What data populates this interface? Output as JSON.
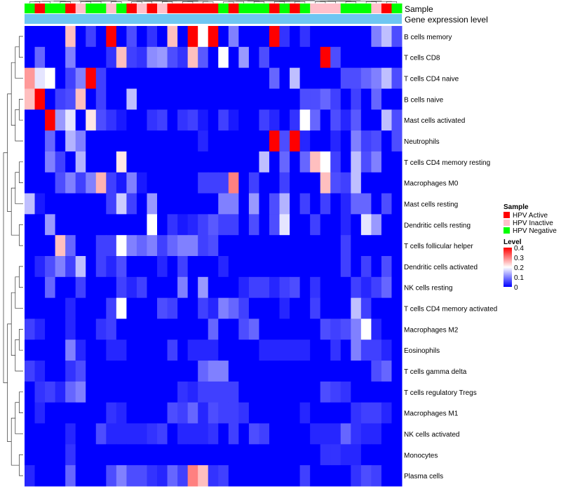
{
  "chart_data": {
    "type": "heatmap",
    "title": "",
    "annotation_rows": [
      {
        "name": "Sample",
        "values": [
          "HPV Negative",
          "HPV Active",
          "HPV Negative",
          "HPV Negative",
          "HPV Active",
          "HPV Inactive",
          "HPV Negative",
          "HPV Negative",
          "HPV Inactive",
          "HPV Negative",
          "HPV Active",
          "HPV Inactive",
          "HPV Active",
          "HPV Inactive",
          "HPV Active",
          "HPV Active",
          "HPV Active",
          "HPV Active",
          "HPV Active",
          "HPV Negative",
          "HPV Active",
          "HPV Negative",
          "HPV Negative",
          "HPV Negative",
          "HPV Active",
          "HPV Negative",
          "HPV Active",
          "HPV Negative",
          "HPV Inactive",
          "HPV Inactive",
          "HPV Inactive",
          "HPV Negative",
          "HPV Negative",
          "HPV Negative",
          "HPV Inactive",
          "HPV Active",
          "HPV Negative"
        ]
      },
      {
        "name": "Gene expression level",
        "values": []
      }
    ],
    "rows": [
      "B cells memory",
      "T cells CD8",
      "T cells CD4 naive",
      "B cells naive",
      "Mast cells activated",
      "Neutrophils",
      "T cells CD4 memory resting",
      "Macrophages M0",
      "Mast cells resting",
      "Dendritic cells resting",
      "T cells follicular helper",
      "Dendritic cells activated",
      "NK cells resting",
      "T cells CD4 memory activated",
      "Macrophages M2",
      "Eosinophils",
      "T cells gamma delta",
      "T cells regulatory  Tregs",
      "Macrophages M1",
      "NK cells activated",
      "Monocytes",
      "Plasma cells"
    ],
    "values": [
      [
        0,
        0,
        0,
        0,
        0.25,
        0,
        0.05,
        0,
        0.4,
        0,
        0.06,
        0,
        0.04,
        0,
        0.25,
        0,
        0.4,
        0.2,
        0.4,
        0,
        0.1,
        0,
        0,
        0,
        0.4,
        0.04,
        0,
        0.04,
        0,
        0,
        0,
        0,
        0,
        0,
        0.1,
        0.15,
        0.06
      ],
      [
        0,
        0.08,
        0,
        0,
        0.1,
        0,
        0,
        0,
        0.04,
        0.25,
        0.05,
        0.04,
        0.11,
        0.12,
        0.06,
        0.04,
        0.25,
        0.07,
        0,
        0.2,
        0,
        0.12,
        0,
        0.06,
        0,
        0,
        0,
        0,
        0,
        0.4,
        0.06,
        0,
        0,
        0,
        0,
        0,
        0
      ],
      [
        0.28,
        0.18,
        0.2,
        0,
        0.05,
        0.1,
        0.4,
        0.05,
        0,
        0,
        0,
        0,
        0,
        0,
        0,
        0,
        0,
        0,
        0,
        0,
        0,
        0,
        0,
        0,
        0.08,
        0,
        0.15,
        0,
        0,
        0,
        0,
        0.06,
        0.06,
        0.08,
        0.1,
        0.15,
        0.06
      ],
      [
        0.25,
        0.4,
        0,
        0.05,
        0.06,
        0.25,
        0,
        0.05,
        0,
        0,
        0.15,
        0,
        0,
        0,
        0,
        0,
        0,
        0,
        0,
        0,
        0,
        0,
        0,
        0,
        0,
        0,
        0,
        0.06,
        0.06,
        0.08,
        0.05,
        0,
        0.05,
        0,
        0.08,
        0,
        0
      ],
      [
        0,
        0,
        0.4,
        0.12,
        0.18,
        0,
        0.22,
        0.06,
        0.04,
        0.02,
        0,
        0,
        0.04,
        0.05,
        0,
        0.04,
        0.05,
        0.02,
        0,
        0.05,
        0.02,
        0,
        0,
        0.05,
        0.03,
        0,
        0.04,
        0.2,
        0.08,
        0,
        0.06,
        0.03,
        0.07,
        0,
        0,
        0.15,
        0.06
      ],
      [
        0,
        0,
        0.08,
        0,
        0.14,
        0.1,
        0,
        0,
        0,
        0,
        0,
        0,
        0,
        0,
        0,
        0,
        0,
        0.03,
        0,
        0,
        0,
        0,
        0,
        0,
        0.4,
        0.06,
        0.4,
        0.03,
        0,
        0,
        0.03,
        0,
        0.1,
        0.05,
        0.06,
        0,
        0.06
      ],
      [
        0,
        0,
        0.1,
        0.05,
        0,
        0.14,
        0,
        0,
        0,
        0.22,
        0,
        0,
        0,
        0,
        0,
        0,
        0,
        0,
        0,
        0,
        0,
        0,
        0,
        0.15,
        0,
        0.08,
        0,
        0.08,
        0.25,
        0.2,
        0.05,
        0,
        0.15,
        0.06,
        0.1,
        0,
        0
      ],
      [
        0,
        0,
        0,
        0.06,
        0.1,
        0.05,
        0.1,
        0.26,
        0.05,
        0.02,
        0.1,
        0.02,
        0,
        0,
        0,
        0,
        0,
        0.05,
        0.05,
        0.05,
        0.3,
        0,
        0.05,
        0,
        0,
        0.05,
        0,
        0,
        0,
        0.25,
        0.06,
        0.05,
        0.15,
        0,
        0,
        0,
        0
      ],
      [
        0.15,
        0.02,
        0,
        0,
        0,
        0,
        0,
        0,
        0.05,
        0.16,
        0.05,
        0,
        0.12,
        0,
        0,
        0,
        0,
        0,
        0,
        0.1,
        0.1,
        0,
        0.12,
        0,
        0.06,
        0.14,
        0,
        0.05,
        0,
        0.05,
        0,
        0.03,
        0.08,
        0.08,
        0,
        0.06,
        0
      ],
      [
        0,
        0,
        0.12,
        0,
        0,
        0,
        0,
        0,
        0,
        0,
        0,
        0,
        0.2,
        0,
        0.04,
        0.02,
        0.03,
        0.05,
        0.07,
        0.05,
        0.05,
        0,
        0.06,
        0,
        0.06,
        0.18,
        0,
        0,
        0.05,
        0,
        0,
        0.03,
        0,
        0.18,
        0.12,
        0,
        0
      ],
      [
        0,
        0,
        0,
        0.25,
        0.08,
        0,
        0,
        0.05,
        0.05,
        0.2,
        0.1,
        0.08,
        0.1,
        0.05,
        0.08,
        0.1,
        0.1,
        0.05,
        0.06,
        0,
        0,
        0,
        0,
        0,
        0,
        0,
        0,
        0,
        0,
        0,
        0,
        0.05,
        0,
        0,
        0,
        0,
        0
      ],
      [
        0,
        0.03,
        0.06,
        0.1,
        0.05,
        0.15,
        0,
        0.05,
        0.03,
        0.06,
        0,
        0,
        0,
        0.03,
        0,
        0.05,
        0,
        0,
        0,
        0.03,
        0,
        0,
        0,
        0,
        0,
        0,
        0,
        0,
        0,
        0,
        0,
        0.05,
        0,
        0.05,
        0,
        0.06,
        0
      ],
      [
        0,
        0,
        0.08,
        0,
        0,
        0.05,
        0,
        0,
        0,
        0.05,
        0.03,
        0.05,
        0,
        0,
        0,
        0.1,
        0,
        0.12,
        0,
        0,
        0,
        0.03,
        0.05,
        0.05,
        0.03,
        0.05,
        0.06,
        0,
        0.04,
        0,
        0,
        0,
        0.05,
        0.03,
        0.05,
        0.08,
        0
      ],
      [
        0,
        0,
        0,
        0,
        0.03,
        0,
        0,
        0,
        0.05,
        0.2,
        0,
        0,
        0,
        0.06,
        0.05,
        0,
        0,
        0.05,
        0.03,
        0.1,
        0.08,
        0.05,
        0,
        0,
        0,
        0.03,
        0,
        0,
        0.05,
        0,
        0,
        0,
        0.15,
        0.05,
        0,
        0,
        0
      ],
      [
        0.05,
        0.03,
        0,
        0,
        0.03,
        0,
        0,
        0.04,
        0.05,
        0,
        0,
        0,
        0,
        0,
        0,
        0,
        0,
        0,
        0.08,
        0,
        0,
        0.06,
        0.08,
        0,
        0,
        0,
        0,
        0,
        0,
        0.06,
        0.05,
        0.06,
        0.1,
        0.2,
        0.03,
        0,
        0
      ],
      [
        0,
        0,
        0,
        0,
        0.1,
        0.03,
        0,
        0,
        0.03,
        0.03,
        0,
        0,
        0,
        0,
        0.05,
        0,
        0.03,
        0.03,
        0.03,
        0,
        0,
        0,
        0,
        0.03,
        0.03,
        0.03,
        0.03,
        0.03,
        0,
        0,
        0.04,
        0,
        0.1,
        0.05,
        0.05,
        0.03,
        0
      ],
      [
        0.05,
        0.03,
        0,
        0,
        0.04,
        0.06,
        0,
        0,
        0,
        0,
        0,
        0,
        0,
        0,
        0,
        0,
        0,
        0.08,
        0.1,
        0.1,
        0,
        0,
        0,
        0,
        0,
        0,
        0,
        0,
        0,
        0,
        0,
        0,
        0,
        0,
        0.06,
        0.08,
        0
      ],
      [
        0,
        0.04,
        0.05,
        0.03,
        0.08,
        0.1,
        0,
        0,
        0,
        0,
        0,
        0,
        0,
        0,
        0,
        0.04,
        0.03,
        0.05,
        0.05,
        0.05,
        0.05,
        0,
        0,
        0,
        0,
        0,
        0,
        0,
        0,
        0.06,
        0.05,
        0.04,
        0,
        0,
        0,
        0,
        0
      ],
      [
        0,
        0.03,
        0,
        0,
        0,
        0,
        0,
        0,
        0.04,
        0.03,
        0,
        0,
        0,
        0,
        0.06,
        0.05,
        0.08,
        0.03,
        0.06,
        0.05,
        0.05,
        0.04,
        0,
        0,
        0,
        0,
        0,
        0.03,
        0,
        0,
        0,
        0,
        0.04,
        0.05,
        0.05,
        0.03,
        0
      ],
      [
        0,
        0,
        0,
        0,
        0.03,
        0,
        0,
        0.06,
        0.03,
        0.03,
        0.03,
        0.03,
        0.04,
        0.05,
        0,
        0.03,
        0.03,
        0.03,
        0.04,
        0,
        0.05,
        0,
        0.06,
        0.05,
        0,
        0,
        0,
        0,
        0.03,
        0.03,
        0.03,
        0.08,
        0.04,
        0.03,
        0.03,
        0,
        0
      ],
      [
        0,
        0,
        0,
        0,
        0.04,
        0,
        0,
        0,
        0,
        0,
        0,
        0,
        0,
        0,
        0,
        0,
        0,
        0,
        0,
        0,
        0,
        0,
        0,
        0,
        0,
        0,
        0,
        0,
        0,
        0.04,
        0.04,
        0.03,
        0.03,
        0,
        0,
        0,
        0
      ],
      [
        0.03,
        0,
        0,
        0,
        0.08,
        0,
        0,
        0,
        0.06,
        0.1,
        0.06,
        0.06,
        0.04,
        0.03,
        0.08,
        0.05,
        0.3,
        0.25,
        0.04,
        0.05,
        0,
        0,
        0,
        0,
        0,
        0,
        0,
        0.05,
        0,
        0,
        0,
        0,
        0.04,
        0.06,
        0.05,
        0,
        0
      ]
    ],
    "legend": {
      "position": "right",
      "sample": {
        "title": "Sample",
        "entries": [
          {
            "label": "HPV Active",
            "color": "#ff0000"
          },
          {
            "label": "HPV Inactive",
            "color": "#ffc0cb"
          },
          {
            "label": "HPV Negative",
            "color": "#00ff00"
          }
        ]
      },
      "level": {
        "title": "Level",
        "ticks": [
          0.4,
          0.3,
          0.2,
          0.1,
          0
        ],
        "tick_labels": [
          "0.4",
          "0.3",
          "0.2",
          "0.1",
          "0"
        ],
        "range": [
          0,
          0.4
        ],
        "colors": [
          "#0000ff",
          "#ffffff",
          "#ff0000"
        ]
      }
    },
    "gene_expression_color": "#6ec6f2",
    "row_dendrogram": true,
    "column_dendrogram": true,
    "grid": false
  }
}
